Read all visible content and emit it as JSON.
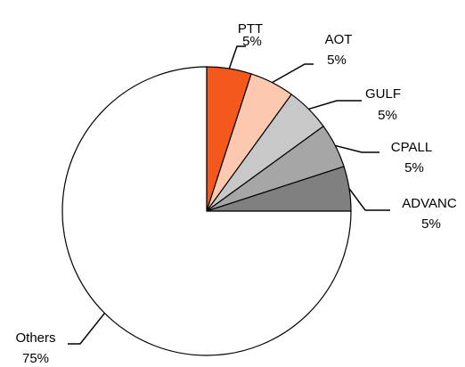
{
  "chart_data": {
    "type": "pie",
    "categories": [
      "PTT",
      "AOT",
      "GULF",
      "CPALL",
      "ADVANC",
      "Others"
    ],
    "values": [
      5,
      5,
      5,
      5,
      5,
      75
    ],
    "value_labels": [
      "5%",
      "5%",
      "5%",
      "5%",
      "5%",
      "75%"
    ],
    "colors": [
      "#f4581a",
      "#fcc9b0",
      "#c8c8c8",
      "#a6a6a6",
      "#808080",
      "#ffffff"
    ]
  }
}
